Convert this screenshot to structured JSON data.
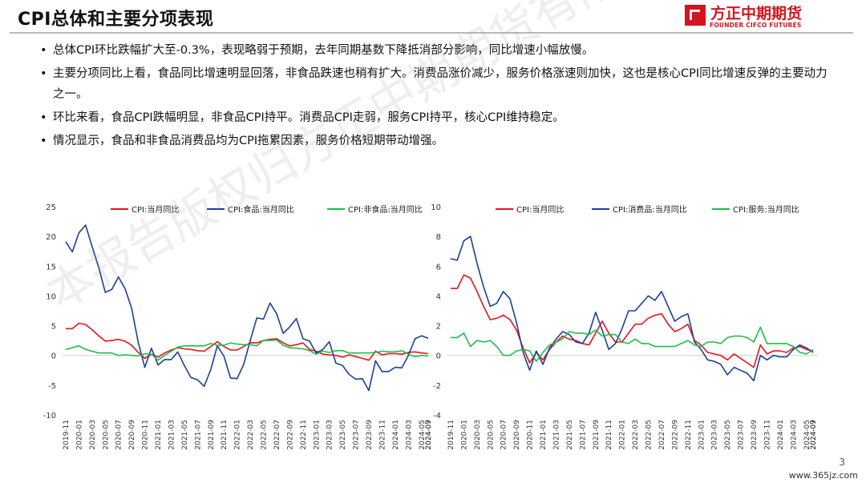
{
  "title": "CPI总体和主要分项表现",
  "logo": {
    "cn": "方正中期期货",
    "en": "FOUNDER CIFCO FUTURES"
  },
  "bullets": [
    "总体CPI环比跌幅扩大至-0.3%，表现略弱于预期，去年同期基数下降抵消部分影响，同比增速小幅放慢。",
    "主要分项同比上看，食品同比增速明显回落，非食品跌速也稍有扩大。消费品涨价减少，服务价格涨速则加快，这也是核心CPI同比增速反弹的主要动力之一。",
    "环比来看，食品CPI跌幅明显，非食品CPI持平。消费品CPI走弱，服务CPI持平，核心CPI维持稳定。",
    "情况显示，食品和非食品消费品均为CPI拖累因素，服务价格短期带动增强。"
  ],
  "watermark": "本报告版权归方正中期期货有限公司所有",
  "page_number": "3",
  "site_mark": "www.365jz.com",
  "colors": {
    "red": "#e8141c",
    "blue": "#1c3f9c",
    "green": "#1fbe4a",
    "brand": "#d7141d"
  },
  "chart_data": [
    {
      "type": "line",
      "ylim": [
        -10,
        25
      ],
      "yticks": [
        "25",
        "20",
        "15",
        "10",
        "5",
        "0",
        "-5",
        "-10"
      ],
      "xticks": [
        "2019-11",
        "2020-01",
        "2020-03",
        "2020-05",
        "2020-07",
        "2020-09",
        "2020-11",
        "2021-01",
        "2021-03",
        "2021-05",
        "2021-07",
        "2021-09",
        "2021-11",
        "2022-01",
        "2022-03",
        "2022-05",
        "2022-07",
        "2022-09",
        "2022-11",
        "2023-01",
        "2023-03",
        "2023-05",
        "2023-07",
        "2023-09",
        "2023-11",
        "2024-01",
        "2024-03",
        "2024-05",
        "2024-07",
        "2024-09"
      ],
      "legend_position": "top",
      "series": [
        {
          "name": "CPI:当月同比",
          "color": "#e8141c",
          "values": [
            4.5,
            4.5,
            5.4,
            5.2,
            4.3,
            3.3,
            2.4,
            2.5,
            2.7,
            2.4,
            1.7,
            0.5,
            -0.5,
            0.2,
            -0.3,
            0.4,
            0.9,
            1.3,
            1.1,
            1.0,
            0.8,
            0.7,
            1.5,
            2.3,
            1.5,
            0.9,
            0.9,
            1.5,
            2.1,
            2.1,
            2.5,
            2.7,
            2.8,
            2.1,
            1.6,
            1.8,
            2.1,
            1.0,
            0.7,
            0.2,
            0.1,
            0.0,
            -0.3,
            0.1,
            -0.2,
            -0.5,
            -0.8,
            0.7,
            0.1,
            0.3,
            0.3,
            0.2,
            0.5,
            0.6,
            0.4,
            0.3
          ]
        },
        {
          "name": "CPI:食品:当月同比",
          "color": "#1c3f9c",
          "values": [
            19.1,
            17.4,
            20.6,
            21.9,
            18.3,
            14.8,
            10.6,
            11.1,
            13.2,
            11.2,
            7.9,
            2.2,
            -2.0,
            1.2,
            -1.6,
            -0.7,
            -0.7,
            0.6,
            -1.7,
            -3.7,
            -4.1,
            -5.2,
            -2.4,
            1.6,
            -0.1,
            -3.8,
            -3.9,
            -1.5,
            2.5,
            6.3,
            6.1,
            8.8,
            7.0,
            3.7,
            4.8,
            6.2,
            2.8,
            2.4,
            0.4,
            1.0,
            2.3,
            -1.3,
            -1.7,
            -3.2,
            -4.0,
            -3.9,
            -5.9,
            -0.9,
            -2.7,
            -2.7,
            -2.0,
            -2.1,
            0.0,
            2.8,
            3.3,
            2.9
          ]
        },
        {
          "name": "CPI:非食品:当月同比",
          "color": "#1fbe4a",
          "values": [
            1.0,
            1.3,
            1.6,
            1.0,
            0.7,
            0.4,
            0.4,
            0.4,
            0.0,
            0.1,
            0.0,
            -0.1,
            0.3,
            0.2,
            -0.8,
            0.0,
            0.7,
            1.4,
            1.6,
            1.6,
            1.6,
            1.6,
            2.0,
            1.7,
            1.7,
            2.1,
            1.9,
            1.8,
            1.8,
            1.6,
            2.5,
            2.5,
            2.6,
            1.7,
            1.3,
            1.2,
            1.1,
            0.8,
            0.2,
            0.7,
            0.5,
            0.8,
            0.8,
            0.4,
            0.4,
            0.4,
            0.4,
            0.5,
            0.7,
            0.6,
            0.6,
            0.8,
            0.2,
            -0.2,
            0.0,
            -0.1
          ]
        }
      ]
    },
    {
      "type": "line",
      "ylim": [
        -4,
        10
      ],
      "yticks": [
        "10",
        "8",
        "6",
        "4",
        "2",
        "0",
        "-2",
        "-4"
      ],
      "xticks": [
        "2019-11",
        "2020-01",
        "2020-03",
        "2020-05",
        "2020-07",
        "2020-09",
        "2020-11",
        "2021-01",
        "2021-03",
        "2021-05",
        "2021-07",
        "2021-09",
        "2021-11",
        "2022-01",
        "2022-03",
        "2022-05",
        "2022-07",
        "2022-09",
        "2022-11",
        "2023-01",
        "2023-03",
        "2023-05",
        "2023-07",
        "2023-09",
        "2023-11",
        "2024-01",
        "2024-03",
        "2024-05",
        "2024-07",
        "2024-09"
      ],
      "legend_position": "top",
      "series": [
        {
          "name": "CPI:当月同比",
          "color": "#e8141c",
          "values": [
            4.5,
            4.5,
            5.4,
            5.2,
            4.3,
            3.3,
            2.4,
            2.5,
            2.7,
            2.4,
            1.7,
            0.5,
            -0.5,
            0.2,
            -0.3,
            0.4,
            0.9,
            1.3,
            1.1,
            1.0,
            0.8,
            0.7,
            1.5,
            2.3,
            1.5,
            0.9,
            0.9,
            1.5,
            2.1,
            2.1,
            2.5,
            2.7,
            2.8,
            2.1,
            1.6,
            1.8,
            2.1,
            1.0,
            0.7,
            0.2,
            0.1,
            0.0,
            -0.3,
            0.1,
            -0.2,
            -0.5,
            -0.8,
            0.7,
            0.1,
            0.3,
            0.3,
            0.2,
            0.5,
            0.6,
            0.4,
            0.3
          ]
        },
        {
          "name": "CPI:消费品:当月同比",
          "color": "#1c3f9c",
          "values": [
            6.5,
            6.4,
            7.7,
            8.0,
            6.2,
            4.6,
            3.3,
            3.5,
            4.3,
            3.8,
            2.2,
            0.2,
            -1.0,
            0.3,
            -0.6,
            0.5,
            1.1,
            1.6,
            1.4,
            0.9,
            0.8,
            1.5,
            2.9,
            1.7,
            0.4,
            0.8,
            1.8,
            3.0,
            3.0,
            3.5,
            4.0,
            3.7,
            4.3,
            3.3,
            2.3,
            2.6,
            2.8,
            0.9,
            0.4,
            -0.3,
            -0.4,
            -0.6,
            -1.3,
            -0.8,
            -1.0,
            -1.2,
            -1.7,
            0.0,
            -0.3,
            0.0,
            -0.1,
            -0.1,
            0.4,
            0.7,
            0.5,
            0.2
          ]
        },
        {
          "name": "CPI:服务:当月同比",
          "color": "#1fbe4a",
          "values": [
            1.2,
            1.2,
            1.5,
            0.6,
            1.0,
            0.9,
            1.0,
            0.6,
            0.0,
            0.0,
            0.3,
            0.4,
            0.3,
            -0.4,
            0.2,
            0.7,
            0.9,
            1.1,
            1.6,
            1.5,
            1.5,
            1.4,
            1.7,
            1.3,
            1.4,
            1.4,
            0.9,
            0.8,
            1.1,
            0.8,
            0.8,
            0.6,
            0.6,
            0.6,
            0.6,
            0.8,
            1.0,
            0.7,
            0.6,
            0.9,
            0.9,
            0.8,
            1.2,
            1.3,
            1.3,
            1.2,
            0.9,
            1.9,
            0.8,
            0.8,
            0.8,
            0.8,
            0.6,
            0.2,
            0.1,
            0.4
          ]
        }
      ]
    }
  ]
}
